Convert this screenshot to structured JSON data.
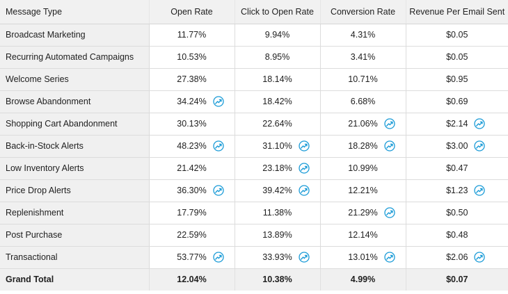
{
  "colors": {
    "trend_icon": "#1a9bd7",
    "label_bg": "#f0f0f0",
    "grid": "#dcdcdc"
  },
  "table": {
    "headers": [
      "Message Type",
      "Open Rate",
      "Click to Open Rate",
      "Conversion Rate",
      "Revenue Per Email Sent"
    ],
    "rows": [
      {
        "type": "Broadcast Marketing",
        "cells": [
          {
            "value": "11.77%",
            "trend": false
          },
          {
            "value": "9.94%",
            "trend": false
          },
          {
            "value": "4.31%",
            "trend": false
          },
          {
            "value": "$0.05",
            "trend": false
          }
        ]
      },
      {
        "type": "Recurring Automated Campaigns",
        "cells": [
          {
            "value": "10.53%",
            "trend": false
          },
          {
            "value": "8.95%",
            "trend": false
          },
          {
            "value": "3.41%",
            "trend": false
          },
          {
            "value": "$0.05",
            "trend": false
          }
        ]
      },
      {
        "type": "Welcome Series",
        "cells": [
          {
            "value": "27.38%",
            "trend": false
          },
          {
            "value": "18.14%",
            "trend": false
          },
          {
            "value": "10.71%",
            "trend": false
          },
          {
            "value": "$0.95",
            "trend": false
          }
        ]
      },
      {
        "type": "Browse Abandonment",
        "cells": [
          {
            "value": "34.24%",
            "trend": true
          },
          {
            "value": "18.42%",
            "trend": false
          },
          {
            "value": "6.68%",
            "trend": false
          },
          {
            "value": "$0.69",
            "trend": false
          }
        ]
      },
      {
        "type": "Shopping Cart Abandonment",
        "cells": [
          {
            "value": "30.13%",
            "trend": false
          },
          {
            "value": "22.64%",
            "trend": false
          },
          {
            "value": "21.06%",
            "trend": true
          },
          {
            "value": "$2.14",
            "trend": true
          }
        ]
      },
      {
        "type": "Back-in-Stock Alerts",
        "cells": [
          {
            "value": "48.23%",
            "trend": true
          },
          {
            "value": "31.10%",
            "trend": true
          },
          {
            "value": "18.28%",
            "trend": true
          },
          {
            "value": "$3.00",
            "trend": true
          }
        ]
      },
      {
        "type": "Low Inventory Alerts",
        "cells": [
          {
            "value": "21.42%",
            "trend": false
          },
          {
            "value": "23.18%",
            "trend": true
          },
          {
            "value": "10.99%",
            "trend": false
          },
          {
            "value": "$0.47",
            "trend": false
          }
        ]
      },
      {
        "type": "Price Drop Alerts",
        "cells": [
          {
            "value": "36.30%",
            "trend": true
          },
          {
            "value": "39.42%",
            "trend": true
          },
          {
            "value": "12.21%",
            "trend": false
          },
          {
            "value": "$1.23",
            "trend": true
          }
        ]
      },
      {
        "type": "Replenishment",
        "cells": [
          {
            "value": "17.79%",
            "trend": false
          },
          {
            "value": "11.38%",
            "trend": false
          },
          {
            "value": "21.29%",
            "trend": true
          },
          {
            "value": "$0.50",
            "trend": false
          }
        ]
      },
      {
        "type": "Post Purchase",
        "cells": [
          {
            "value": "22.59%",
            "trend": false
          },
          {
            "value": "13.89%",
            "trend": false
          },
          {
            "value": "12.14%",
            "trend": false
          },
          {
            "value": "$0.48",
            "trend": false
          }
        ]
      },
      {
        "type": "Transactional",
        "cells": [
          {
            "value": "53.77%",
            "trend": true
          },
          {
            "value": "33.93%",
            "trend": true
          },
          {
            "value": "13.01%",
            "trend": true
          },
          {
            "value": "$2.06",
            "trend": true
          }
        ]
      }
    ],
    "total": {
      "label": "Grand Total",
      "values": [
        "12.04%",
        "10.38%",
        "4.99%",
        "$0.07"
      ]
    }
  }
}
